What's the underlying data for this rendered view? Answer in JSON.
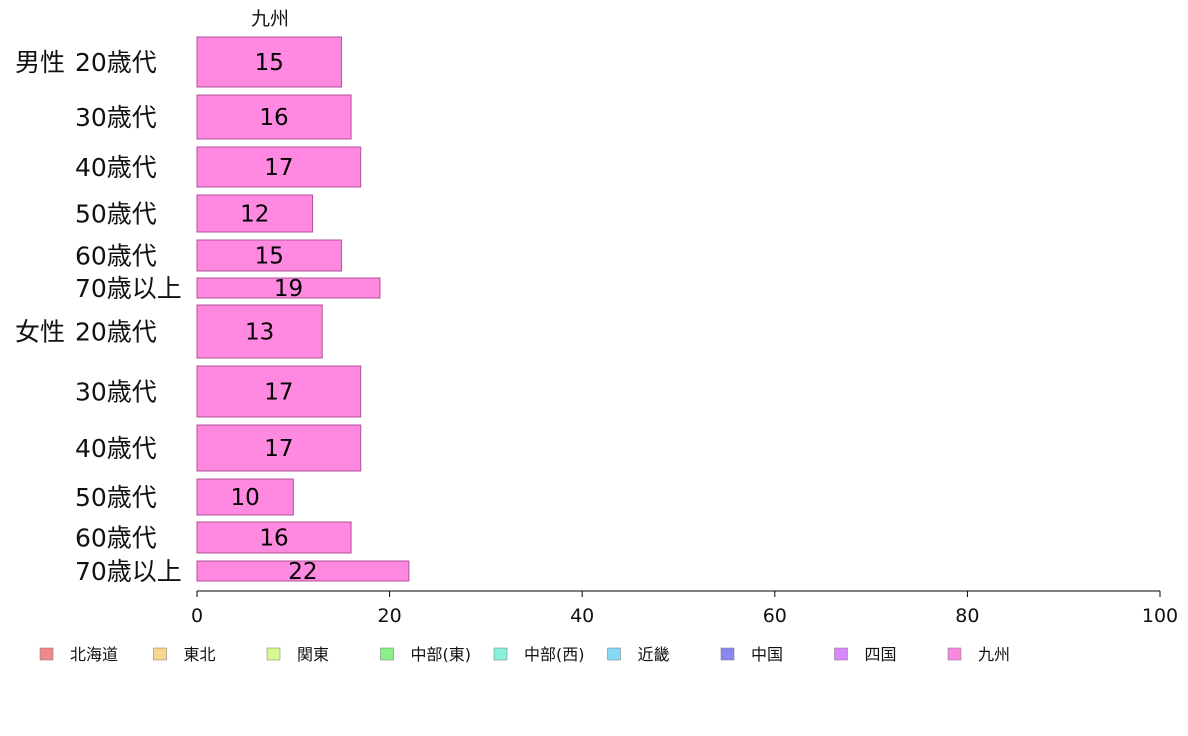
{
  "chart_data": {
    "type": "bar",
    "orientation": "horizontal",
    "stacked": true,
    "column_title": "九州",
    "groups": [
      {
        "label": "男性",
        "rows": [
          {
            "label": "20歳代",
            "value": 15
          },
          {
            "label": "30歳代",
            "value": 16
          },
          {
            "label": "40歳代",
            "value": 17
          },
          {
            "label": "50歳代",
            "value": 12
          },
          {
            "label": "60歳代",
            "value": 15
          },
          {
            "label": "70歳以上",
            "value": 19
          }
        ]
      },
      {
        "label": "女性",
        "rows": [
          {
            "label": "20歳代",
            "value": 13
          },
          {
            "label": "30歳代",
            "value": 17
          },
          {
            "label": "40歳代",
            "value": 17
          },
          {
            "label": "50歳代",
            "value": 10
          },
          {
            "label": "60歳代",
            "value": 16
          },
          {
            "label": "70歳以上",
            "value": 22
          }
        ]
      }
    ],
    "xlim": [
      0,
      100
    ],
    "xticks": [
      0,
      20,
      40,
      60,
      80,
      100
    ],
    "grid": false,
    "bar_color": "#ff88e0",
    "bar_stroke": "#b0509a",
    "legend_position": "bottom",
    "legend": [
      {
        "name": "北海道",
        "color": "#f08a8a"
      },
      {
        "name": "東北",
        "color": "#f8d890"
      },
      {
        "name": "関東",
        "color": "#d8f890"
      },
      {
        "name": "中部(東)",
        "color": "#88f088"
      },
      {
        "name": "中部(西)",
        "color": "#88f0d8"
      },
      {
        "name": "近畿",
        "color": "#88d8f8"
      },
      {
        "name": "中国",
        "color": "#8888f0"
      },
      {
        "name": "四国",
        "color": "#d888f8"
      },
      {
        "name": "九州",
        "color": "#f888e0"
      }
    ]
  }
}
